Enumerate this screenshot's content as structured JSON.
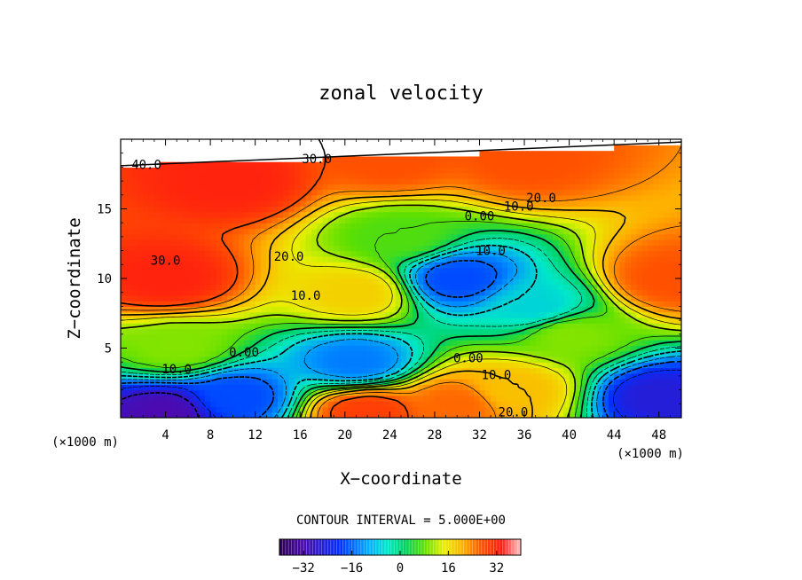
{
  "chart_data": {
    "type": "heatmap",
    "title": "zonal velocity",
    "xlabel": "X−coordinate",
    "ylabel": "Z−coordinate",
    "x_unit": "(×1000 m)",
    "y_unit": "(×1000 m)",
    "xlim": [
      0,
      50
    ],
    "ylim": [
      0,
      20
    ],
    "x_ticks": [
      4,
      8,
      12,
      16,
      20,
      24,
      28,
      32,
      36,
      40,
      44,
      48
    ],
    "y_ticks": [
      5,
      10,
      15
    ],
    "contour_interval_text": "CONTOUR INTERVAL = 5.000E+00",
    "colorbar": {
      "min": -40,
      "max": 40,
      "ticks": [
        -32,
        -16,
        0,
        16,
        32
      ]
    },
    "features": [
      {
        "x": 4,
        "z": 10,
        "value": 35
      },
      {
        "x": 10,
        "z": 17,
        "value": 35
      },
      {
        "x": 24,
        "z": 18.5,
        "value": 30
      },
      {
        "x": 36,
        "z": 18.5,
        "value": 30
      },
      {
        "x": 49,
        "z": 10,
        "value": 30
      },
      {
        "x": 21,
        "z": 9,
        "value": 18
      },
      {
        "x": 30,
        "z": 10,
        "value": -22
      },
      {
        "x": 37,
        "z": 8,
        "value": -10
      },
      {
        "x": 21,
        "z": 4,
        "value": -18
      },
      {
        "x": 4,
        "z": 0.5,
        "value": -32
      },
      {
        "x": 10,
        "z": 1.5,
        "value": -22
      },
      {
        "x": 48,
        "z": 1.5,
        "value": -28
      },
      {
        "x": 22,
        "z": 0.5,
        "value": 32
      },
      {
        "x": 30,
        "z": 1,
        "value": 28
      },
      {
        "x": 35,
        "z": 2,
        "value": 20
      },
      {
        "x": 25,
        "z": 13,
        "value": 5
      },
      {
        "x": 40,
        "z": 6,
        "value": 8
      },
      {
        "x": 5,
        "z": 5,
        "value": 8
      }
    ],
    "contour_labels": [
      {
        "text": "40.0",
        "x": 2.3,
        "z": 18.2
      },
      {
        "text": "30.0",
        "x": 17.5,
        "z": 18.6
      },
      {
        "text": "20.0",
        "x": 37.5,
        "z": 15.8
      },
      {
        "text": "10.0",
        "x": 35.5,
        "z": 15.2
      },
      {
        "text": "0.00",
        "x": 32.0,
        "z": 14.5
      },
      {
        "text": "30.0",
        "x": 4.0,
        "z": 11.3
      },
      {
        "text": "20.0",
        "x": 15.0,
        "z": 11.6
      },
      {
        "text": "10.0",
        "x": 16.5,
        "z": 8.8
      },
      {
        "text": "10.0",
        "x": 33.0,
        "z": 12.0
      },
      {
        "text": "0.00",
        "x": 11.0,
        "z": 4.7
      },
      {
        "text": "0.00",
        "x": 31.0,
        "z": 4.3
      },
      {
        "text": "10.0",
        "x": 5.0,
        "z": 3.5
      },
      {
        "text": "10.0",
        "x": 33.5,
        "z": 3.1
      },
      {
        "text": "20.0",
        "x": 35.0,
        "z": 0.4
      }
    ]
  }
}
